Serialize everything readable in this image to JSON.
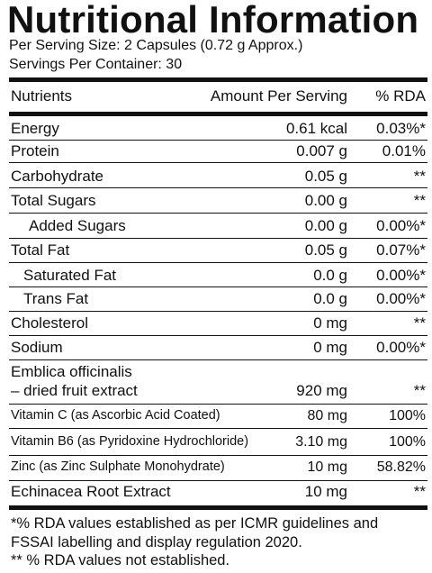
{
  "title": "Nutritional Information",
  "serving_size": "Per Serving Size: 2 Capsules (0.72 g Approx.)",
  "servings_per_container": "Servings Per Container: 30",
  "header": {
    "nutrients": "Nutrients",
    "amount": "Amount Per Serving",
    "rda": "% RDA"
  },
  "rows": [
    {
      "name": "Energy",
      "amount": "0.61 kcal",
      "rda": "0.03%*"
    },
    {
      "name": "Protein",
      "amount": "0.007 g",
      "rda": "0.01%"
    },
    {
      "name": "Carbohydrate",
      "amount": "0.05 g",
      "rda": "**"
    },
    {
      "name": "Total Sugars",
      "amount": "0.00 g",
      "rda": "**"
    },
    {
      "name": "Added Sugars",
      "amount": "0.00 g",
      "rda": "0.00%*"
    },
    {
      "name": "Total Fat",
      "amount": "0.05 g",
      "rda": "0.07%*"
    },
    {
      "name": "Saturated Fat",
      "amount": "0.0 g",
      "rda": "0.00%*"
    },
    {
      "name": "Trans Fat",
      "amount": "0.0 g",
      "rda": "0.00%*"
    },
    {
      "name": "Cholesterol",
      "amount": "0 mg",
      "rda": "**"
    },
    {
      "name": "Sodium",
      "amount": "0 mg",
      "rda": "0.00%*"
    },
    {
      "name_line1": "Emblica officinalis",
      "name_line2": "– dried fruit extract",
      "amount": "920 mg",
      "rda": "**"
    },
    {
      "name": "Vitamin C (as Ascorbic Acid Coated)",
      "amount": "80 mg",
      "rda": "100%"
    },
    {
      "name": "Vitamin B6 (as Pyridoxine Hydrochloride)",
      "amount": "3.10 mg",
      "rda": "100%"
    },
    {
      "name": "Zinc (as Zinc Sulphate Monohydrate)",
      "amount": "10 mg",
      "rda": "58.82%"
    },
    {
      "name": "Echinacea Root Extract",
      "amount": "10 mg",
      "rda": "**"
    }
  ],
  "footnotes": [
    "*% RDA values established as per ICMR guidelines and",
    "FSSAI labelling and display regulation 2020.",
    "** % RDA values not established."
  ]
}
